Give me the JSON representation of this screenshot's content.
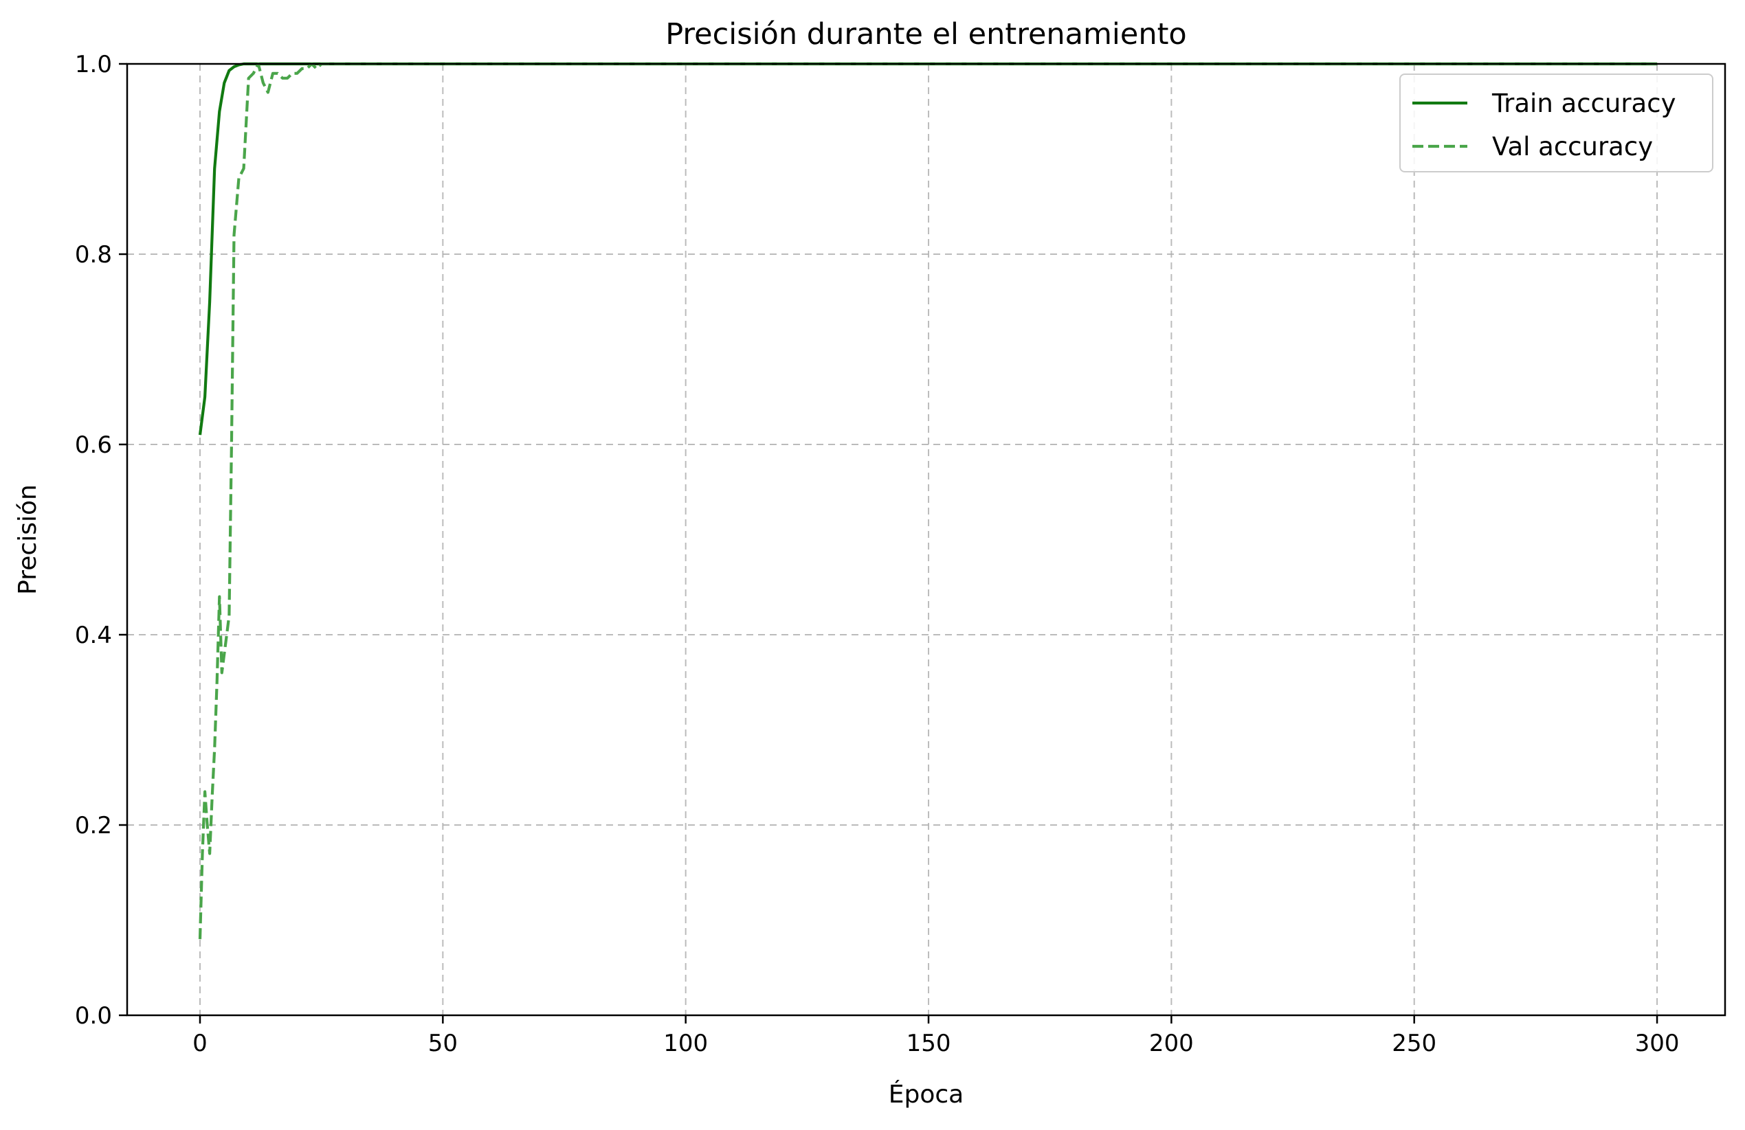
{
  "chart_data": {
    "type": "line",
    "title": "Precisión durante el entrenamiento",
    "xlabel": "Época",
    "ylabel": "Precisión",
    "xlim": [
      -15,
      314
    ],
    "ylim": [
      0,
      1.0
    ],
    "xticks": [
      0,
      50,
      100,
      150,
      200,
      250,
      300
    ],
    "yticks": [
      0.0,
      0.2,
      0.4,
      0.6,
      0.8,
      1.0
    ],
    "xtick_labels": [
      "0",
      "50",
      "100",
      "150",
      "200",
      "250",
      "300"
    ],
    "ytick_labels": [
      "0.0",
      "0.2",
      "0.4",
      "0.6",
      "0.8",
      "1.0"
    ],
    "grid": true,
    "legend_position": "top-right",
    "series": [
      {
        "name": "Train accuracy",
        "color": "#117a11",
        "style": "solid",
        "x": [
          0,
          1,
          2,
          3,
          4,
          5,
          6,
          7,
          8,
          9,
          10,
          12,
          15,
          20,
          30,
          50,
          100,
          150,
          200,
          250,
          300
        ],
        "y": [
          0.61,
          0.65,
          0.75,
          0.89,
          0.95,
          0.98,
          0.993,
          0.997,
          0.999,
          1.0,
          1.0,
          1.0,
          1.0,
          1.0,
          1.0,
          1.0,
          1.0,
          1.0,
          1.0,
          1.0,
          1.0
        ]
      },
      {
        "name": "Val accuracy",
        "color": "#4aa54a",
        "style": "dashed",
        "x": [
          0,
          0.5,
          1,
          1.5,
          2,
          2.5,
          3,
          3.5,
          4,
          4.5,
          5,
          5.5,
          6,
          6.5,
          7,
          8,
          9,
          10,
          11,
          12,
          13,
          14,
          15,
          16,
          17,
          18,
          19,
          20,
          21,
          22,
          23,
          24,
          25,
          30,
          50,
          100,
          150,
          200,
          250,
          300
        ],
        "y": [
          0.08,
          0.17,
          0.235,
          0.2,
          0.17,
          0.23,
          0.28,
          0.35,
          0.44,
          0.36,
          0.38,
          0.4,
          0.42,
          0.6,
          0.82,
          0.88,
          0.89,
          0.985,
          0.99,
          1.0,
          0.98,
          0.97,
          0.99,
          0.99,
          0.985,
          0.985,
          0.99,
          0.99,
          0.995,
          0.995,
          1.0,
          0.995,
          1.0,
          1.0,
          1.0,
          1.0,
          1.0,
          1.0,
          1.0,
          1.0
        ]
      }
    ]
  }
}
